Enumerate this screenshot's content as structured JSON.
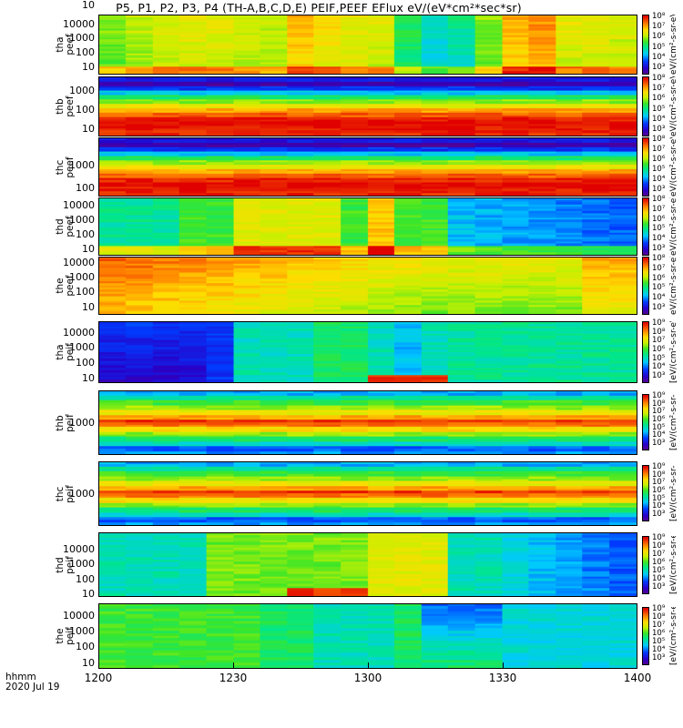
{
  "chart_data": {
    "type": "heatmap",
    "title": "P5, P1, P2, P3, P4 (TH-A,B,C,D,E) PEIF,PEEF EFlux eV/(eV*cm²*sec*sr)",
    "x_axis": {
      "label_line1": "hhmm",
      "label_line2": "2020 Jul 19",
      "ticks": [
        "1200",
        "1230",
        "1300",
        "1330",
        "1400"
      ],
      "range": [
        "12:00",
        "14:00"
      ]
    },
    "colormap": "rainbow (purple-blue-cyan-green-yellow-orange-red)",
    "panels": [
      {
        "name": "tha peef",
        "ylabel1": "tha",
        "ylabel2": "peef",
        "yticks": [
          "10000",
          "1000",
          "100",
          "10"
        ],
        "clabel": "eV/(cm²-s-sr-eV) (4)",
        "cticks": [
          "10⁸",
          "10⁷",
          "10⁶",
          "10⁵",
          "10⁴",
          "10³"
        ]
      },
      {
        "name": "thb peef",
        "ylabel1": "thb",
        "ylabel2": "peef",
        "yticks": [
          "1000",
          "100",
          "10"
        ],
        "clabel": "eV/(cm²-s-sr-eV) (4)",
        "cticks": [
          "10⁸",
          "10⁷",
          "10⁶",
          "10⁵",
          "10⁴",
          "10³"
        ]
      },
      {
        "name": "thc peef",
        "ylabel1": "thc",
        "ylabel2": "peef",
        "yticks": [
          "1000",
          "100",
          "10"
        ],
        "clabel": "eV/(cm²-s-sr-eV) (4)",
        "cticks": [
          "10⁸",
          "10⁷",
          "10⁶",
          "10⁵",
          "10⁴",
          "10³"
        ]
      },
      {
        "name": "thd peef",
        "ylabel1": "thd",
        "ylabel2": "peef",
        "yticks": [
          "10000",
          "1000",
          "100",
          "10"
        ],
        "clabel": "eV/(cm²-s-sr-eV) (4)",
        "cticks": [
          "10⁸",
          "10⁷",
          "10⁶",
          "10⁵",
          "10⁴",
          "10³"
        ]
      },
      {
        "name": "the peef",
        "ylabel1": "the",
        "ylabel2": "peef",
        "yticks": [
          "10000",
          "1000",
          "100",
          "10"
        ],
        "clabel": "eV/(cm²-s-sr-eV) (4)",
        "cticks": [
          "10⁸",
          "10⁷",
          "10⁶",
          "10⁵",
          "10⁴",
          "10³"
        ]
      },
      {
        "name": "tha peif",
        "ylabel1": "tha",
        "ylabel2": "peif",
        "yticks": [
          "10000",
          "1000",
          "100",
          "10"
        ],
        "clabel": "[eV/(cm²-s-sr-eV)]",
        "cticks": [
          "10⁹",
          "10⁸",
          "10⁷",
          "10⁶",
          "10⁵",
          "10⁴",
          "10³"
        ]
      },
      {
        "name": "thb peif",
        "ylabel1": "thb",
        "ylabel2": "peif",
        "yticks": [
          "1000"
        ],
        "clabel": "[eV/(cm²-s-sr-eV)]",
        "cticks": [
          "10⁹",
          "10⁸",
          "10⁷",
          "10⁶",
          "10⁵",
          "10⁴",
          "10³"
        ]
      },
      {
        "name": "thc peif",
        "ylabel1": "thc",
        "ylabel2": "peif",
        "yticks": [
          "1000"
        ],
        "clabel": "[eV/(cm²-s-sr-eV)]",
        "cticks": [
          "10⁹",
          "10⁸",
          "10⁷",
          "10⁶",
          "10⁵",
          "10⁴",
          "10³"
        ]
      },
      {
        "name": "thd peif",
        "ylabel1": "thd",
        "ylabel2": "peif",
        "yticks": [
          "10000",
          "1000",
          "100",
          "10"
        ],
        "clabel": "[eV/(cm²-s-sr-eV)]",
        "cticks": [
          "10⁹",
          "10⁸",
          "10⁷",
          "10⁶",
          "10⁵",
          "10⁴",
          "10³"
        ]
      },
      {
        "name": "the peif",
        "ylabel1": "the",
        "ylabel2": "peif",
        "yticks": [
          "10000",
          "1000",
          "100",
          "10"
        ],
        "clabel": "[eV/(cm²-s-sr-eV)]",
        "cticks": [
          "10⁹",
          "10⁸",
          "10⁷",
          "10⁶",
          "10⁵",
          "10⁴",
          "10³"
        ]
      }
    ]
  }
}
